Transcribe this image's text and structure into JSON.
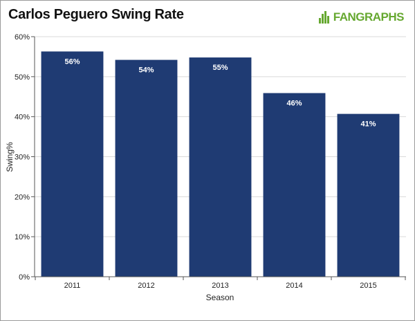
{
  "header": {
    "title": "Carlos Peguero Swing Rate",
    "logo_text": "FANGRAPHS"
  },
  "colors": {
    "bar": "#1f3b73",
    "bar_label": "#ffffff",
    "logo": "#66a830",
    "grid": "#d9d9d9"
  },
  "chart_data": {
    "type": "bar",
    "title": "Carlos Peguero Swing Rate",
    "xlabel": "Season",
    "ylabel": "Swing%",
    "categories": [
      "2011",
      "2012",
      "2013",
      "2014",
      "2015"
    ],
    "values": [
      56.3,
      54.2,
      54.8,
      45.9,
      40.7
    ],
    "value_labels": [
      "56%",
      "54%",
      "55%",
      "46%",
      "41%"
    ],
    "ylim": [
      0,
      60
    ],
    "yticks": [
      0,
      10,
      20,
      30,
      40,
      50,
      60
    ],
    "ytick_labels": [
      "0%",
      "10%",
      "20%",
      "30%",
      "40%",
      "50%",
      "60%"
    ],
    "grid": true,
    "legend": "none"
  }
}
